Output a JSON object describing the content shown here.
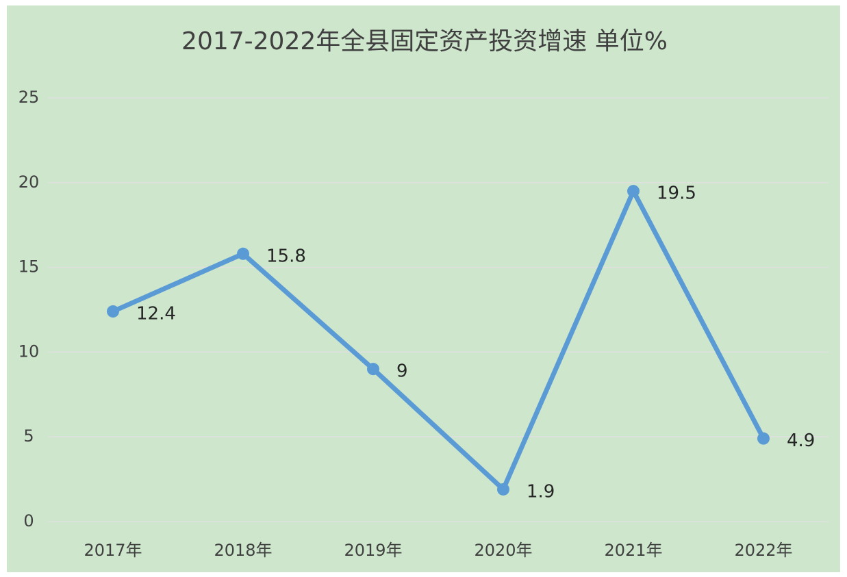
{
  "chart_data": {
    "type": "line",
    "title": "2017-2022年全县固定资产投资增速      单位%",
    "categories": [
      "2017年",
      "2018年",
      "2019年",
      "2020年",
      "2021年",
      "2022年"
    ],
    "values": [
      12.4,
      15.8,
      9,
      1.9,
      19.5,
      4.9
    ],
    "color": "#5b9bd5",
    "ylim": [
      0,
      25
    ],
    "yticks": [
      0,
      5,
      10,
      15,
      20,
      25
    ],
    "grid": true
  }
}
